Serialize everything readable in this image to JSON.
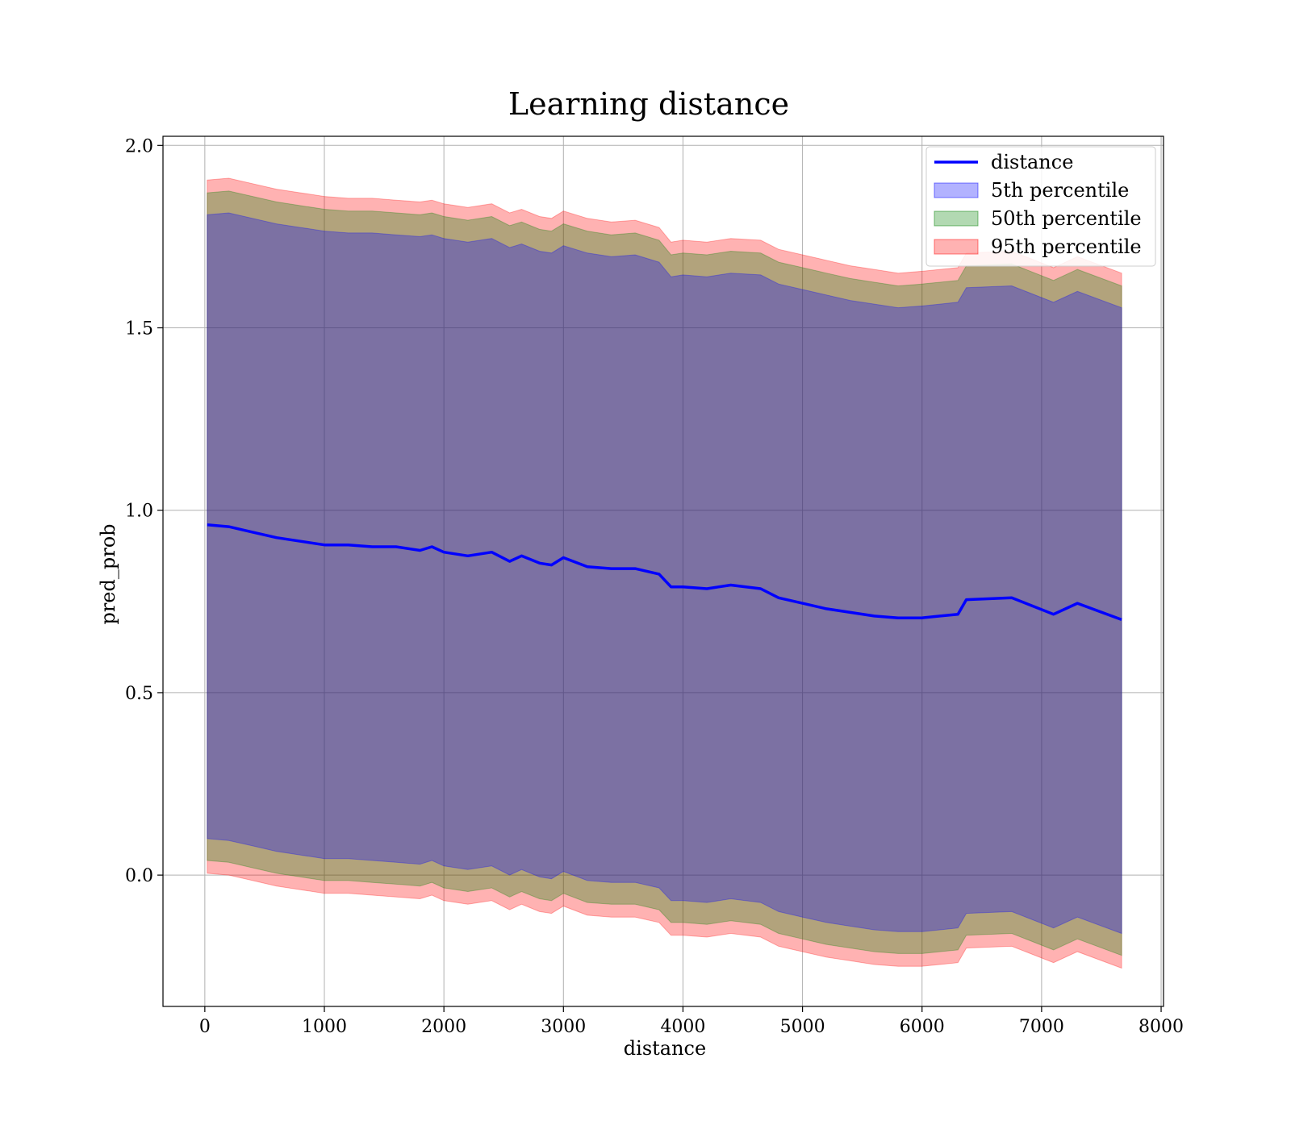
{
  "chart_data": {
    "type": "line",
    "title": "Learning distance",
    "xlabel": "distance",
    "ylabel": "pred_prob",
    "xlim": [
      -350,
      8020
    ],
    "ylim": [
      -0.36,
      2.025
    ],
    "grid": true,
    "legend_position": "upper right",
    "x_ticks": [
      0,
      1000,
      2000,
      3000,
      4000,
      5000,
      6000,
      7000,
      8000
    ],
    "x_tick_labels": [
      "0",
      "1000",
      "2000",
      "3000",
      "4000",
      "5000",
      "6000",
      "7000",
      "8000"
    ],
    "y_ticks": [
      0.0,
      0.5,
      1.0,
      1.5,
      2.0
    ],
    "y_tick_labels": [
      "0.0",
      "0.5",
      "1.0",
      "1.5",
      "2.0"
    ],
    "x": [
      20,
      200,
      400,
      600,
      800,
      1000,
      1200,
      1400,
      1600,
      1800,
      1900,
      2000,
      2200,
      2400,
      2550,
      2650,
      2800,
      2900,
      3000,
      3200,
      3400,
      3600,
      3800,
      3900,
      4000,
      4200,
      4400,
      4650,
      4800,
      5000,
      5200,
      5400,
      5600,
      5800,
      6000,
      6150,
      6300,
      6370,
      6750,
      7100,
      7300,
      7670
    ],
    "series": [
      {
        "name": "distance",
        "kind": "line",
        "color": "#0000ff",
        "values": [
          0.96,
          0.955,
          0.94,
          0.925,
          0.915,
          0.905,
          0.905,
          0.9,
          0.9,
          0.89,
          0.9,
          0.885,
          0.875,
          0.885,
          0.86,
          0.875,
          0.855,
          0.85,
          0.87,
          0.845,
          0.84,
          0.84,
          0.825,
          0.79,
          0.79,
          0.785,
          0.795,
          0.785,
          0.76,
          0.745,
          0.73,
          0.72,
          0.71,
          0.705,
          0.705,
          0.71,
          0.715,
          0.755,
          0.76,
          0.715,
          0.745,
          0.7
        ]
      },
      {
        "name": "5th percentile",
        "kind": "band",
        "color": "#0000ff",
        "upper": [
          1.81,
          1.815,
          1.8,
          1.785,
          1.775,
          1.765,
          1.76,
          1.76,
          1.755,
          1.75,
          1.755,
          1.745,
          1.735,
          1.745,
          1.72,
          1.73,
          1.71,
          1.705,
          1.725,
          1.705,
          1.695,
          1.7,
          1.68,
          1.64,
          1.645,
          1.64,
          1.65,
          1.645,
          1.62,
          1.605,
          1.59,
          1.575,
          1.565,
          1.555,
          1.56,
          1.565,
          1.57,
          1.61,
          1.615,
          1.57,
          1.6,
          1.555
        ],
        "lower": [
          0.1,
          0.095,
          0.08,
          0.065,
          0.055,
          0.045,
          0.045,
          0.04,
          0.035,
          0.03,
          0.04,
          0.025,
          0.015,
          0.025,
          0.0,
          0.015,
          -0.005,
          -0.01,
          0.01,
          -0.015,
          -0.02,
          -0.02,
          -0.035,
          -0.07,
          -0.07,
          -0.075,
          -0.065,
          -0.075,
          -0.1,
          -0.115,
          -0.13,
          -0.14,
          -0.15,
          -0.155,
          -0.155,
          -0.15,
          -0.145,
          -0.105,
          -0.1,
          -0.145,
          -0.115,
          -0.16
        ]
      },
      {
        "name": "50th percentile",
        "kind": "band",
        "color": "#008000",
        "upper": [
          1.87,
          1.875,
          1.86,
          1.845,
          1.835,
          1.825,
          1.82,
          1.82,
          1.815,
          1.81,
          1.815,
          1.805,
          1.795,
          1.805,
          1.78,
          1.79,
          1.77,
          1.765,
          1.785,
          1.765,
          1.755,
          1.76,
          1.74,
          1.7,
          1.705,
          1.7,
          1.71,
          1.705,
          1.68,
          1.665,
          1.65,
          1.635,
          1.625,
          1.615,
          1.62,
          1.625,
          1.63,
          1.67,
          1.675,
          1.63,
          1.66,
          1.615
        ],
        "lower": [
          0.04,
          0.035,
          0.02,
          0.005,
          -0.005,
          -0.015,
          -0.015,
          -0.02,
          -0.025,
          -0.03,
          -0.02,
          -0.035,
          -0.045,
          -0.035,
          -0.06,
          -0.045,
          -0.065,
          -0.07,
          -0.05,
          -0.075,
          -0.08,
          -0.08,
          -0.095,
          -0.13,
          -0.13,
          -0.135,
          -0.125,
          -0.135,
          -0.16,
          -0.175,
          -0.19,
          -0.2,
          -0.21,
          -0.215,
          -0.215,
          -0.21,
          -0.205,
          -0.165,
          -0.16,
          -0.205,
          -0.175,
          -0.22
        ]
      },
      {
        "name": "95th percentile",
        "kind": "band",
        "color": "#ff0000",
        "upper": [
          1.905,
          1.91,
          1.895,
          1.88,
          1.87,
          1.86,
          1.855,
          1.855,
          1.85,
          1.845,
          1.85,
          1.84,
          1.83,
          1.84,
          1.815,
          1.825,
          1.805,
          1.8,
          1.82,
          1.8,
          1.79,
          1.795,
          1.775,
          1.735,
          1.74,
          1.735,
          1.745,
          1.74,
          1.715,
          1.7,
          1.685,
          1.67,
          1.66,
          1.65,
          1.655,
          1.66,
          1.665,
          1.705,
          1.71,
          1.665,
          1.695,
          1.65
        ],
        "lower": [
          0.005,
          0.0,
          -0.015,
          -0.03,
          -0.04,
          -0.05,
          -0.05,
          -0.055,
          -0.06,
          -0.065,
          -0.055,
          -0.07,
          -0.08,
          -0.07,
          -0.095,
          -0.08,
          -0.1,
          -0.105,
          -0.085,
          -0.11,
          -0.115,
          -0.115,
          -0.13,
          -0.165,
          -0.165,
          -0.17,
          -0.16,
          -0.17,
          -0.195,
          -0.21,
          -0.225,
          -0.235,
          -0.245,
          -0.25,
          -0.25,
          -0.245,
          -0.24,
          -0.2,
          -0.195,
          -0.24,
          -0.21,
          -0.255
        ]
      }
    ]
  }
}
